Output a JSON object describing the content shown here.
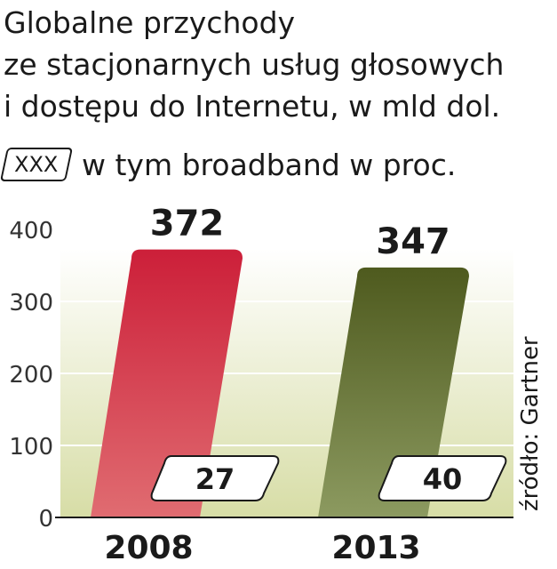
{
  "title_lines": [
    "Globalne przychody",
    "ze stacjonarnych usług głosowych",
    "i dostępu do Internetu, w mld dol."
  ],
  "legend": {
    "box_text": "XXX",
    "text": "w tym broadband w proc."
  },
  "source": "źródło: Gartner",
  "colors": {
    "bar_2008_top": "#cc1f39",
    "bar_2008_bottom": "#e06c71",
    "bar_2013_top": "#4e5a1e",
    "bar_2013_bottom": "#8c9a60",
    "plot_bg_top": "#ffffff",
    "plot_bg_bottom": "#d7dda6"
  },
  "chart_data": {
    "type": "bar",
    "title": "Globalne przychody ze stacjonarnych usług głosowych i dostępu do Internetu, w mld dol.",
    "categories": [
      "2008",
      "2013"
    ],
    "values": [
      372,
      347
    ],
    "broadband_percent": [
      27,
      40
    ],
    "ylim": [
      0,
      400
    ],
    "yticks": [
      0,
      100,
      200,
      300,
      400
    ],
    "grid": true,
    "legend": "top-left"
  }
}
